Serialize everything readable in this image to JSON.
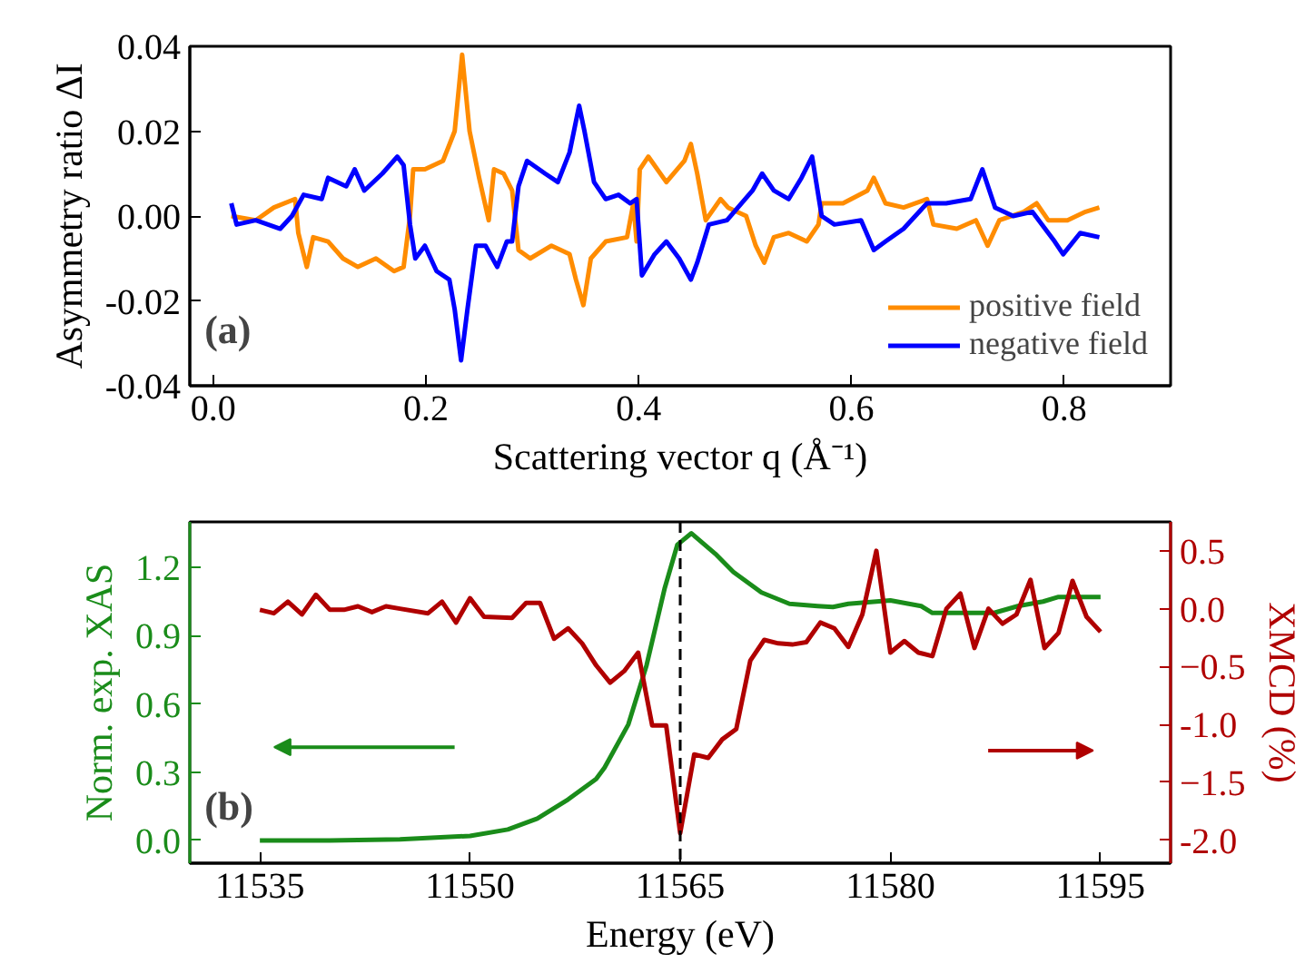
{
  "chart_data": [
    {
      "type": "line",
      "xlabel": "Scattering vector q (Å⁻¹)",
      "ylabel": "Asymmetry ratio ΔI",
      "annotations": [
        "(a)"
      ],
      "xlim": [
        -0.022,
        0.9
      ],
      "ylim": [
        -0.04,
        0.04
      ],
      "xticks": [
        {
          "value": 0,
          "label": "0.0"
        },
        0.2,
        0.4,
        0.6,
        0.8
      ],
      "yticks": [
        {
          "value": -0.04,
          "label": "-0.04"
        },
        {
          "value": -0.02,
          "label": "-0.02"
        },
        {
          "value": 0,
          "label": "0.00"
        },
        {
          "value": 0.02,
          "label": "0.02"
        },
        0.04
      ],
      "grid": false,
      "legend": "bottom right",
      "series": [
        {
          "name": "positive field",
          "color": "#ff8c00",
          "x": [
            0.017,
            0.04,
            0.057,
            0.077,
            0.08,
            0.088,
            0.094,
            0.108,
            0.122,
            0.136,
            0.153,
            0.17,
            0.179,
            0.185,
            0.188,
            0.199,
            0.216,
            0.227,
            0.234,
            0.241,
            0.25,
            0.259,
            0.264,
            0.273,
            0.281,
            0.287,
            0.298,
            0.318,
            0.335,
            0.341,
            0.348,
            0.355,
            0.369,
            0.389,
            0.395,
            0.398,
            0.401,
            0.409,
            0.426,
            0.443,
            0.449,
            0.455,
            0.463,
            0.477,
            0.484,
            0.501,
            0.51,
            0.518,
            0.527,
            0.541,
            0.558,
            0.569,
            0.572,
            0.592,
            0.615,
            0.621,
            0.632,
            0.649,
            0.671,
            0.677,
            0.699,
            0.717,
            0.728,
            0.739,
            0.762,
            0.774,
            0.785,
            0.803,
            0.82,
            0.833
          ],
          "values": [
            0.0,
            -0.001,
            0.002,
            0.004,
            -0.004,
            -0.012,
            -0.005,
            -0.006,
            -0.01,
            -0.012,
            -0.01,
            -0.013,
            -0.012,
            0.0,
            0.011,
            0.011,
            0.013,
            0.02,
            0.038,
            0.02,
            0.009,
            -0.001,
            0.011,
            0.01,
            0.006,
            -0.008,
            -0.01,
            -0.007,
            -0.009,
            -0.015,
            -0.021,
            -0.01,
            -0.006,
            -0.005,
            0.003,
            -0.006,
            0.011,
            0.014,
            0.008,
            0.013,
            0.017,
            0.01,
            -0.001,
            0.004,
            0.002,
            0.0,
            -0.007,
            -0.011,
            -0.005,
            -0.004,
            -0.006,
            -0.002,
            0.003,
            0.003,
            0.006,
            0.009,
            0.003,
            0.002,
            0.004,
            -0.002,
            -0.003,
            -0.001,
            -0.007,
            -0.001,
            0.001,
            0.003,
            -0.001,
            -0.001,
            0.001,
            0.002
          ]
        },
        {
          "name": "negative field",
          "color": "#0000ff",
          "x": [
            0.017,
            0.022,
            0.04,
            0.063,
            0.074,
            0.085,
            0.102,
            0.108,
            0.125,
            0.133,
            0.142,
            0.159,
            0.173,
            0.179,
            0.185,
            0.19,
            0.199,
            0.21,
            0.222,
            0.227,
            0.233,
            0.239,
            0.247,
            0.256,
            0.267,
            0.276,
            0.281,
            0.287,
            0.295,
            0.312,
            0.324,
            0.335,
            0.344,
            0.349,
            0.358,
            0.369,
            0.381,
            0.392,
            0.398,
            0.403,
            0.415,
            0.426,
            0.438,
            0.449,
            0.455,
            0.466,
            0.483,
            0.507,
            0.516,
            0.527,
            0.541,
            0.553,
            0.563,
            0.572,
            0.584,
            0.609,
            0.621,
            0.632,
            0.649,
            0.671,
            0.689,
            0.712,
            0.723,
            0.735,
            0.752,
            0.77,
            0.791,
            0.799,
            0.815,
            0.833
          ],
          "values": [
            0.003,
            -0.002,
            -0.001,
            -0.003,
            0.0,
            0.005,
            0.004,
            0.009,
            0.007,
            0.011,
            0.006,
            0.01,
            0.014,
            0.012,
            -0.002,
            -0.01,
            -0.007,
            -0.013,
            -0.015,
            -0.022,
            -0.034,
            -0.022,
            -0.007,
            -0.007,
            -0.012,
            -0.006,
            -0.006,
            0.007,
            0.013,
            0.01,
            0.008,
            0.015,
            0.026,
            0.02,
            0.008,
            0.004,
            0.005,
            0.003,
            0.004,
            -0.014,
            -0.009,
            -0.006,
            -0.01,
            -0.015,
            -0.011,
            -0.002,
            -0.001,
            0.006,
            0.01,
            0.006,
            0.004,
            0.009,
            0.014,
            0.0,
            -0.002,
            -0.001,
            -0.008,
            -0.006,
            -0.003,
            0.003,
            0.003,
            0.004,
            0.011,
            0.002,
            0.0,
            0.001,
            -0.006,
            -0.009,
            -0.004,
            -0.005
          ]
        }
      ]
    },
    {
      "type": "line",
      "xlabel": "Energy (eV)",
      "ylabel": "Norm. exp. XAS",
      "y2label": "XMCD (%)",
      "annotations": [
        "(b)"
      ],
      "xlim": [
        11530,
        11600
      ],
      "ylim": [
        -0.1,
        1.4
      ],
      "y2lim": [
        -2.2,
        0.75
      ],
      "xticks": [
        11535,
        11550,
        11565,
        11580,
        11595
      ],
      "yticks": [
        {
          "value": 0,
          "label": "0.0"
        },
        0.3,
        0.6,
        0.9,
        1.2
      ],
      "y2ticks": [
        {
          "value": -2,
          "label": "-2.0"
        },
        -1.5,
        {
          "value": -1,
          "label": "-1.0"
        },
        -0.5,
        {
          "value": 0,
          "label": "0.0"
        },
        0.5
      ],
      "grid": false,
      "ref_lines": [
        {
          "axis": "x",
          "value": 11565,
          "color": "#000000",
          "line_style": "dashed"
        }
      ],
      "series": [
        {
          "color": "#1a8c1a",
          "x": [
            11535,
            11540,
            11545,
            11550,
            11552.7,
            11554.8,
            11557,
            11559,
            11559.6,
            11561.3,
            11562.6,
            11563.9,
            11564.8,
            11565.8,
            11567.5,
            11568.8,
            11570.8,
            11572.8,
            11574.8,
            11575.9,
            11577,
            11580,
            11582.2,
            11583,
            11587.4,
            11589.1,
            11590.9,
            11592,
            11595
          ],
          "values": [
            0.0,
            0.0,
            0.005,
            0.02,
            0.048,
            0.096,
            0.18,
            0.27,
            0.32,
            0.51,
            0.77,
            1.11,
            1.3,
            1.35,
            1.26,
            1.18,
            1.09,
            1.04,
            1.03,
            1.026,
            1.04,
            1.055,
            1.03,
            1.0,
            1.0,
            1.03,
            1.05,
            1.07,
            1.07
          ]
        },
        {
          "color": "#b00000",
          "axis": "y2",
          "x": [
            11535,
            11536,
            11537,
            11538,
            11539,
            11540,
            11541,
            11542,
            11543,
            11544,
            11545,
            11547,
            11548,
            11549,
            11550,
            11551,
            11553,
            11554,
            11555,
            11556,
            11557,
            11558,
            11559,
            11560,
            11561,
            11562,
            11563,
            11564,
            11565,
            11566,
            11567,
            11568,
            11569,
            11570,
            11571,
            11572,
            11573,
            11574,
            11575,
            11576,
            11577,
            11578,
            11579,
            11580,
            11581,
            11582,
            11583,
            11584,
            11585,
            11586,
            11587,
            11588,
            11589,
            11590,
            11591,
            11592,
            11593,
            11594,
            11595
          ],
          "values": [
            -0.01,
            -0.04,
            0.06,
            -0.05,
            0.12,
            -0.01,
            -0.01,
            0.02,
            -0.03,
            0.02,
            0.0,
            -0.04,
            0.06,
            -0.12,
            0.09,
            -0.07,
            -0.08,
            0.05,
            0.05,
            -0.26,
            -0.17,
            -0.3,
            -0.49,
            -0.64,
            -0.54,
            -0.38,
            -1.01,
            -1.01,
            -1.94,
            -1.26,
            -1.29,
            -1.13,
            -1.04,
            -0.45,
            -0.27,
            -0.3,
            -0.31,
            -0.29,
            -0.12,
            -0.17,
            -0.33,
            -0.05,
            0.5,
            -0.38,
            -0.28,
            -0.38,
            -0.41,
            0.0,
            0.13,
            -0.34,
            0.0,
            -0.13,
            -0.05,
            0.25,
            -0.34,
            -0.21,
            0.24,
            -0.07,
            -0.2
          ]
        }
      ]
    }
  ]
}
